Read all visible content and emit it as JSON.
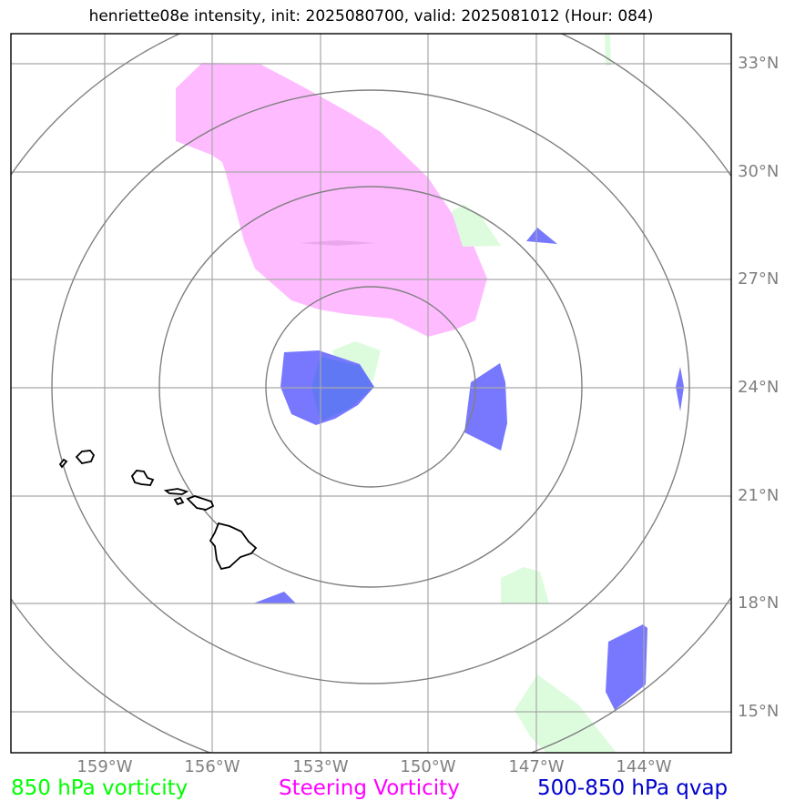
{
  "title": "henriette08e intensity, init: 2025080700, valid: 2025081012 (Hour: 084)",
  "lat_labels": [
    "33°N",
    "30°N",
    "27°N",
    "24°N",
    "21°N",
    "18°N",
    "15°N"
  ],
  "lon_labels": [
    "159°W",
    "156°W",
    "153°W",
    "150°W",
    "147°W",
    "144°W"
  ],
  "legend": {
    "vorticity_850": {
      "label": "850 hPa vorticity",
      "color": "#00ff00"
    },
    "steering": {
      "label": "Steering Vorticity",
      "color": "#ff00ff"
    },
    "qvap": {
      "label": "500-850 hPa qvap",
      "color": "#0000cc"
    }
  },
  "colors": {
    "steering_fill": "#ffbbff",
    "vorticity_fill": "#ddfcdd",
    "qvap_fill": "#7878ff",
    "grid": "#a8a8a8",
    "rings": "#808080",
    "coast": "#000000"
  }
}
